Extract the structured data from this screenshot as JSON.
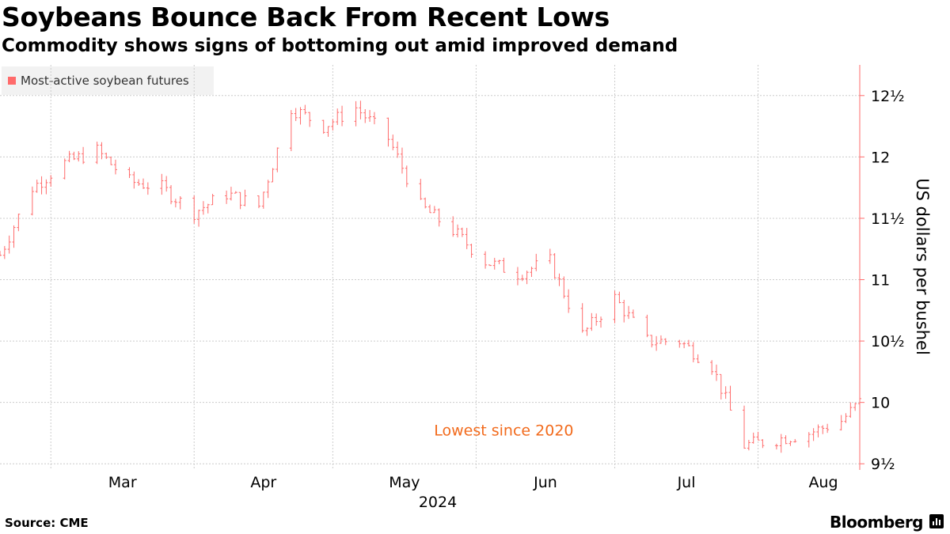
{
  "header": {
    "title": "Soybeans Bounce Back From Recent Lows",
    "subtitle": "Commodity shows signs of bottoming out amid improved demand"
  },
  "footer": {
    "source": "Source: CME",
    "brand": "Bloomberg"
  },
  "colors": {
    "series": "#ff6b6b",
    "axis": "#ff6b6b",
    "annotation": "#f26b1d",
    "grid": "#cccccc"
  },
  "chart_data": {
    "type": "line",
    "title": "Soybeans Bounce Back From Recent Lows",
    "subtitle": "Commodity shows signs of bottoming out amid improved demand",
    "ylabel": "US dollars per bushel",
    "xlabel": "2024",
    "ylim": [
      9.45,
      12.75
    ],
    "yticks": [
      {
        "value": 9.5,
        "label": "9½"
      },
      {
        "value": 10,
        "label": "10"
      },
      {
        "value": 10.5,
        "label": "10½"
      },
      {
        "value": 11,
        "label": "11"
      },
      {
        "value": 11.5,
        "label": "11½"
      },
      {
        "value": 12,
        "label": "12"
      },
      {
        "value": 12.5,
        "label": "12½"
      }
    ],
    "xlim": [
      "2024-02-19",
      "2024-08-23"
    ],
    "xticks": [
      {
        "value": "2024-03-01",
        "label": "Mar"
      },
      {
        "value": "2024-04-01",
        "label": "Apr"
      },
      {
        "value": "2024-05-01",
        "label": "May"
      },
      {
        "value": "2024-06-01",
        "label": "Jun"
      },
      {
        "value": "2024-07-01",
        "label": "Jul"
      },
      {
        "value": "2024-08-01",
        "label": "Aug"
      }
    ],
    "grid": true,
    "legend": {
      "position": "top-left",
      "entries": [
        "Most-active soybean futures"
      ]
    },
    "annotations": [
      {
        "text": "Lowest since 2020",
        "x": "2024-06-01",
        "y": 9.77
      }
    ],
    "series": [
      {
        "name": "Most-active soybean futures",
        "x": [
          "2024-02-19",
          "2024-02-26",
          "2024-03-04",
          "2024-03-11",
          "2024-03-18",
          "2024-03-25",
          "2024-04-01",
          "2024-04-08",
          "2024-04-15",
          "2024-04-22",
          "2024-04-29",
          "2024-05-06",
          "2024-05-13",
          "2024-05-20",
          "2024-05-27",
          "2024-06-03",
          "2024-06-10",
          "2024-06-17",
          "2024-06-24",
          "2024-07-01",
          "2024-07-08",
          "2024-07-15",
          "2024-07-22",
          "2024-07-29",
          "2024-08-05",
          "2024-08-12",
          "2024-08-19",
          "2024-08-23"
        ],
        "values": [
          11.2,
          11.75,
          11.95,
          12.05,
          11.8,
          11.75,
          11.55,
          11.7,
          11.6,
          12.4,
          12.25,
          12.4,
          12.15,
          11.6,
          11.4,
          11.15,
          11.05,
          11.15,
          10.55,
          10.85,
          10.5,
          10.5,
          10.3,
          9.65,
          9.7,
          9.75,
          9.85,
          10.0
        ]
      }
    ]
  }
}
